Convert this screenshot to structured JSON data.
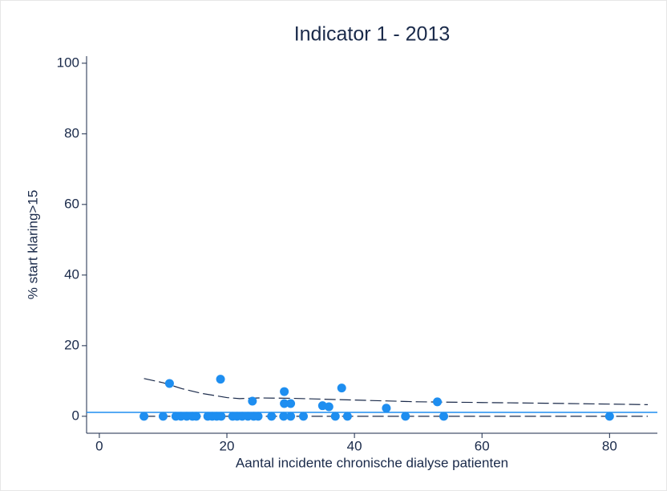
{
  "chart_data": {
    "type": "scatter",
    "title": "Indicator 1 - 2013",
    "xlabel": "Aantal incidente chronische dialyse patienten",
    "ylabel": "% start klaring>15",
    "xlim": [
      -2,
      87.5
    ],
    "ylim": [
      -4.8,
      102
    ],
    "xticks": [
      0,
      20,
      40,
      60,
      80
    ],
    "yticks": [
      0,
      20,
      40,
      60,
      80,
      100
    ],
    "points": {
      "color": "#1e8ef0",
      "x": [
        7,
        10,
        12,
        12.8,
        13.7,
        14.6,
        15.2,
        17,
        17.7,
        18.4,
        19.1,
        20.9,
        21.6,
        22.4,
        23.3,
        24.2,
        24.9,
        27,
        28.9,
        30,
        32,
        37,
        38.9,
        48,
        54,
        80,
        11,
        19,
        24,
        29,
        29,
        30,
        35,
        36,
        38,
        45,
        53
      ],
      "y": [
        0,
        0,
        0,
        0,
        0,
        0,
        0,
        0,
        0,
        0,
        0,
        0,
        0,
        0,
        0,
        0,
        0,
        0,
        0,
        0,
        0,
        0,
        0,
        0,
        0,
        0,
        9.3,
        10.5,
        4.3,
        7,
        3.6,
        3.6,
        3,
        2.7,
        8,
        2.3,
        4.1
      ]
    },
    "reference_line": {
      "value": 1.1,
      "color": "#1e8ef0"
    },
    "limits": [
      {
        "color": "#1a2a4a",
        "x": [
          7,
          10,
          13,
          16,
          20,
          22,
          25,
          30,
          40,
          50,
          60,
          70,
          86
        ],
        "y": [
          10.7,
          9.5,
          7.8,
          6.5,
          5.3,
          5.0,
          5.2,
          5.1,
          4.6,
          4.1,
          3.9,
          3.7,
          3.3
        ]
      },
      {
        "color": "#1a2a4a",
        "x": [
          7,
          86
        ],
        "y": [
          0,
          0
        ]
      }
    ]
  }
}
